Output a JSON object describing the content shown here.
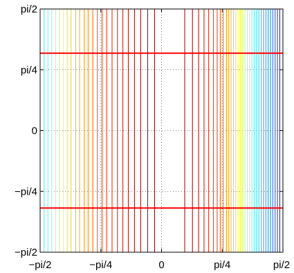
{
  "chart_data": {
    "type": "line",
    "title": "",
    "xlabel": "",
    "ylabel": "",
    "xlim": [
      -1.5708,
      1.5708
    ],
    "ylim": [
      -1.5708,
      1.5708
    ],
    "grid": true,
    "x_ticks": [
      {
        "value": -1.5708,
        "label": "−pi/2"
      },
      {
        "value": -0.7854,
        "label": "−pi/4"
      },
      {
        "value": 0,
        "label": "0"
      },
      {
        "value": 0.7854,
        "label": "pi/4"
      },
      {
        "value": 1.5708,
        "label": "pi/2"
      }
    ],
    "y_ticks": [
      {
        "value": -1.5708,
        "label": "−pi/2"
      },
      {
        "value": -0.7854,
        "label": "−pi/4"
      },
      {
        "value": 0,
        "label": "0"
      },
      {
        "value": 0.7854,
        "label": "pi/4"
      },
      {
        "value": 1.5708,
        "label": "pi/2"
      }
    ],
    "colormap": [
      "#0000c8",
      "#1f6fe0",
      "#00c8ff",
      "#7fffe0",
      "#ffff00",
      "#ffa500",
      "#ff3000",
      "#8b0000"
    ],
    "vertical_contours": [
      {
        "x": -1.52,
        "level": 0.37
      },
      {
        "x": -1.47,
        "level": 0.4
      },
      {
        "x": -1.42,
        "level": 0.44
      },
      {
        "x": -1.37,
        "level": 0.48
      },
      {
        "x": -1.32,
        "level": 0.52
      },
      {
        "x": -1.27,
        "level": 0.56
      },
      {
        "x": -1.22,
        "level": 0.6
      },
      {
        "x": -1.17,
        "level": 0.64
      },
      {
        "x": -1.11,
        "level": 0.68
      },
      {
        "x": -1.06,
        "level": 0.71
      },
      {
        "x": -1.0,
        "level": 0.74
      },
      {
        "x": -0.95,
        "level": 0.77
      },
      {
        "x": -0.89,
        "level": 0.8
      },
      {
        "x": -0.83,
        "level": 0.83
      },
      {
        "x": -0.77,
        "level": 0.86
      },
      {
        "x": -0.71,
        "level": 0.88
      },
      {
        "x": -0.64,
        "level": 0.9
      },
      {
        "x": -0.57,
        "level": 0.92
      },
      {
        "x": -0.5,
        "level": 0.94
      },
      {
        "x": -0.43,
        "level": 0.96
      },
      {
        "x": -0.35,
        "level": 0.98
      },
      {
        "x": -0.27,
        "level": 1.0
      },
      {
        "x": -0.18,
        "level": 1.0
      },
      {
        "x": -0.09,
        "level": 1.0
      },
      {
        "x": 0.3,
        "level": 1.0
      },
      {
        "x": 0.4,
        "level": 1.0
      },
      {
        "x": 0.48,
        "level": 0.97
      },
      {
        "x": 0.55,
        "level": 0.94
      },
      {
        "x": 0.61,
        "level": 0.91
      },
      {
        "x": 0.67,
        "level": 0.88
      },
      {
        "x": 0.72,
        "level": 0.85
      },
      {
        "x": 0.76,
        "level": 0.82
      },
      {
        "x": 0.8,
        "level": 0.79
      },
      {
        "x": 0.84,
        "level": 0.75
      },
      {
        "x": 0.87,
        "level": 0.72
      },
      {
        "x": 0.9,
        "level": 0.68
      },
      {
        "x": 0.93,
        "level": 0.64
      },
      {
        "x": 0.96,
        "level": 0.61
      },
      {
        "x": 0.99,
        "level": 0.58
      },
      {
        "x": 1.02,
        "level": 0.55
      },
      {
        "x": 1.05,
        "level": 0.52
      },
      {
        "x": 1.08,
        "level": 0.49
      },
      {
        "x": 1.11,
        "level": 0.46
      },
      {
        "x": 1.14,
        "level": 0.43
      },
      {
        "x": 1.17,
        "level": 0.4
      },
      {
        "x": 1.2,
        "level": 0.37
      },
      {
        "x": 1.23,
        "level": 0.34
      },
      {
        "x": 1.26,
        "level": 0.31
      },
      {
        "x": 1.29,
        "level": 0.28
      },
      {
        "x": 1.32,
        "level": 0.25
      },
      {
        "x": 1.35,
        "level": 0.22
      },
      {
        "x": 1.38,
        "level": 0.19
      },
      {
        "x": 1.41,
        "level": 0.16
      },
      {
        "x": 1.44,
        "level": 0.13
      },
      {
        "x": 1.47,
        "level": 0.1
      },
      {
        "x": 1.5,
        "level": 0.07
      },
      {
        "x": 1.53,
        "level": 0.04
      }
    ],
    "horizontal_lines": [
      {
        "y": 1.0,
        "color": "#ff0000"
      },
      {
        "y": -1.0,
        "color": "#ff0000"
      }
    ]
  }
}
